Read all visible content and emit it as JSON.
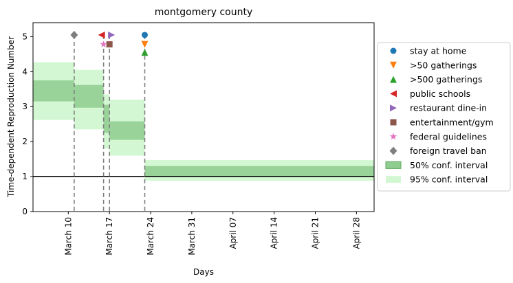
{
  "chart_data": {
    "type": "step-area",
    "title": "montgomery county",
    "xlabel": "Days",
    "ylabel": "Time-dependent Reproduction Number",
    "x_axis": "date (2020)",
    "xlim": [
      "2020-03-04",
      "2020-05-01"
    ],
    "ylim": [
      0,
      5.4
    ],
    "yticks": [
      0,
      1,
      2,
      3,
      4,
      5
    ],
    "xticks": [
      {
        "date": "2020-03-10",
        "label": "March 10"
      },
      {
        "date": "2020-03-17",
        "label": "March 17"
      },
      {
        "date": "2020-03-24",
        "label": "March 24"
      },
      {
        "date": "2020-03-31",
        "label": "March 31"
      },
      {
        "date": "2020-04-07",
        "label": "April 07"
      },
      {
        "date": "2020-04-14",
        "label": "April 14"
      },
      {
        "date": "2020-04-21",
        "label": "April 21"
      },
      {
        "date": "2020-04-28",
        "label": "April 28"
      }
    ],
    "reference_line": 1.0,
    "intervals": [
      {
        "start": "2020-03-04",
        "end": "2020-03-11",
        "ci50": [
          3.15,
          3.75
        ],
        "ci95": [
          2.62,
          4.27
        ]
      },
      {
        "start": "2020-03-11",
        "end": "2020-03-16",
        "ci50": [
          2.97,
          3.62
        ],
        "ci95": [
          2.35,
          4.05
        ]
      },
      {
        "start": "2020-03-16",
        "end": "2020-03-17",
        "ci50": [
          2.25,
          3.05
        ],
        "ci95": [
          1.8,
          3.35
        ]
      },
      {
        "start": "2020-03-17",
        "end": "2020-03-23",
        "ci50": [
          2.05,
          2.58
        ],
        "ci95": [
          1.6,
          3.2
        ]
      },
      {
        "start": "2020-03-23",
        "end": "2020-05-01",
        "ci50": [
          1.02,
          1.3
        ],
        "ci95": [
          0.88,
          1.47
        ]
      }
    ],
    "interventions": [
      {
        "name": "stay at home",
        "date": "2020-03-23",
        "y": 5.05,
        "marker": "circle",
        "color": "#1f77b4"
      },
      {
        "name": ">50 gatherings",
        "date": "2020-03-23",
        "y": 4.78,
        "marker": "triangle-down",
        "color": "#ff7f0e"
      },
      {
        "name": ">500 gatherings",
        "date": "2020-03-23",
        "y": 4.55,
        "marker": "triangle-up",
        "color": "#2ca02c"
      },
      {
        "name": "public schools",
        "date": "2020-03-16",
        "y": 5.05,
        "marker": "triangle-left",
        "color": "#d62728"
      },
      {
        "name": "restaurant dine-in",
        "date": "2020-03-17",
        "y": 5.05,
        "marker": "triangle-right",
        "color": "#9467bd"
      },
      {
        "name": "entertainment/gym",
        "date": "2020-03-17",
        "y": 4.78,
        "marker": "square",
        "color": "#8c564b"
      },
      {
        "name": "federal guidelines",
        "date": "2020-03-16",
        "y": 4.78,
        "marker": "star",
        "color": "#e377c2"
      },
      {
        "name": "foreign travel ban",
        "date": "2020-03-11",
        "y": 5.05,
        "marker": "diamond",
        "color": "#7f7f7f"
      }
    ],
    "intervention_lines": [
      "2020-03-11",
      "2020-03-16",
      "2020-03-17",
      "2020-03-23"
    ],
    "legend": {
      "placement": "outside-right",
      "entries": [
        {
          "label": "stay at home",
          "marker": "circle",
          "color": "#1f77b4"
        },
        {
          "label": ">50 gatherings",
          "marker": "triangle-down",
          "color": "#ff7f0e"
        },
        {
          "label": ">500 gatherings",
          "marker": "triangle-up",
          "color": "#2ca02c"
        },
        {
          "label": "public schools",
          "marker": "triangle-left",
          "color": "#d62728"
        },
        {
          "label": "restaurant dine-in",
          "marker": "triangle-right",
          "color": "#9467bd"
        },
        {
          "label": "entertainment/gym",
          "marker": "square",
          "color": "#8c564b"
        },
        {
          "label": "federal guidelines",
          "marker": "star",
          "color": "#e377c2"
        },
        {
          "label": "foreign travel ban",
          "marker": "diamond",
          "color": "#7f7f7f"
        },
        {
          "label": "50% conf. interval",
          "marker": "patch50",
          "color": "#5fa85f"
        },
        {
          "label": "95% conf. interval",
          "marker": "patch95",
          "color": "#c9f4c9"
        }
      ]
    },
    "colors": {
      "ci50": "#8fcc8f",
      "ci50_edge": "#5fa85f",
      "ci95": "#d2f7d2",
      "ref_line": "#000000",
      "vline": "#7f7f7f"
    }
  }
}
